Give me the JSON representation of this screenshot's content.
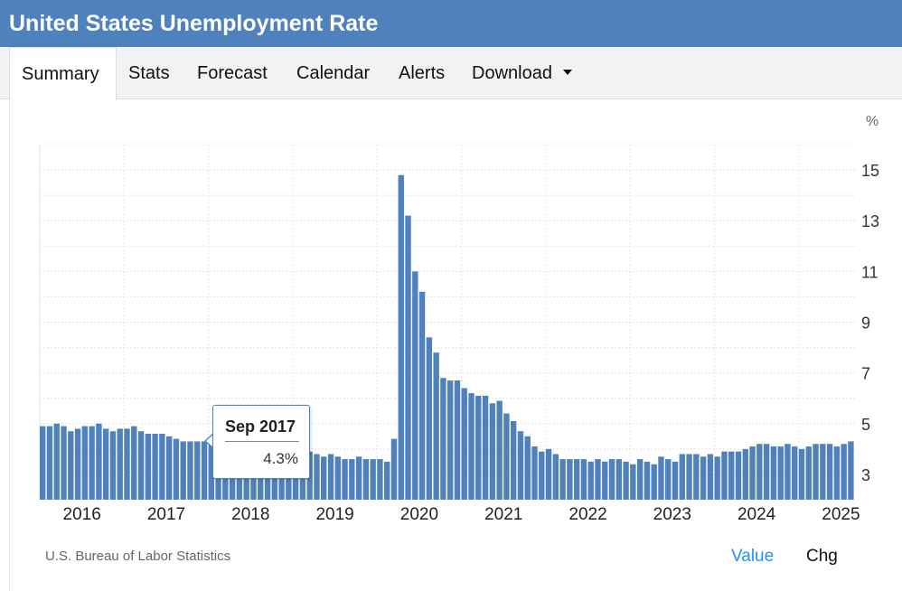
{
  "header": {
    "title": "United States Unemployment Rate"
  },
  "tabs": [
    {
      "label": "Summary",
      "active": true
    },
    {
      "label": "Stats"
    },
    {
      "label": "Forecast"
    },
    {
      "label": "Calendar"
    },
    {
      "label": "Alerts"
    },
    {
      "label": "Download",
      "has_dropdown": true
    }
  ],
  "footer": {
    "source": "U.S. Bureau of Labor Statistics",
    "value_button": "Value",
    "chg_button": "Chg"
  },
  "tooltip": {
    "date": "Sep 2017",
    "value": "4.3%"
  },
  "colors": {
    "header_bg": "#4f81bd",
    "bar": "#4f81bd",
    "link": "#1e90ff"
  },
  "chart_data": {
    "type": "bar",
    "unit_label": "%",
    "ylim": [
      2,
      16
    ],
    "yticks": [
      3,
      5,
      7,
      9,
      11,
      13,
      15
    ],
    "xticks": [
      "2016",
      "2017",
      "2018",
      "2019",
      "2020",
      "2021",
      "2022",
      "2023",
      "2024",
      "2025"
    ],
    "x_start": "2016-01",
    "grid": true,
    "values": [
      4.9,
      4.9,
      5.0,
      4.9,
      4.7,
      4.8,
      4.9,
      4.9,
      5.0,
      4.8,
      4.7,
      4.8,
      4.8,
      4.9,
      4.7,
      4.6,
      4.6,
      4.6,
      4.5,
      4.4,
      4.3,
      4.3,
      4.3,
      4.3,
      4.3,
      4.3,
      4.2,
      4.2,
      4.0,
      4.1,
      4.0,
      3.9,
      3.8,
      3.9,
      3.9,
      3.9,
      4.0,
      3.9,
      3.9,
      3.8,
      3.7,
      3.8,
      3.7,
      3.6,
      3.6,
      3.7,
      3.6,
      3.6,
      3.6,
      3.5,
      4.4,
      14.8,
      13.2,
      11.0,
      10.2,
      8.4,
      7.8,
      6.8,
      6.7,
      6.7,
      6.4,
      6.2,
      6.1,
      6.1,
      5.8,
      5.9,
      5.4,
      5.1,
      4.7,
      4.5,
      4.1,
      3.9,
      4.0,
      3.8,
      3.6,
      3.6,
      3.6,
      3.6,
      3.5,
      3.6,
      3.5,
      3.6,
      3.6,
      3.5,
      3.4,
      3.6,
      3.5,
      3.4,
      3.7,
      3.6,
      3.5,
      3.8,
      3.8,
      3.8,
      3.7,
      3.8,
      3.7,
      3.9,
      3.9,
      3.9,
      4.0,
      4.1,
      4.2,
      4.2,
      4.1,
      4.1,
      4.2,
      4.1,
      4.0,
      4.1,
      4.2,
      4.2,
      4.2,
      4.1,
      4.2,
      4.3
    ]
  }
}
